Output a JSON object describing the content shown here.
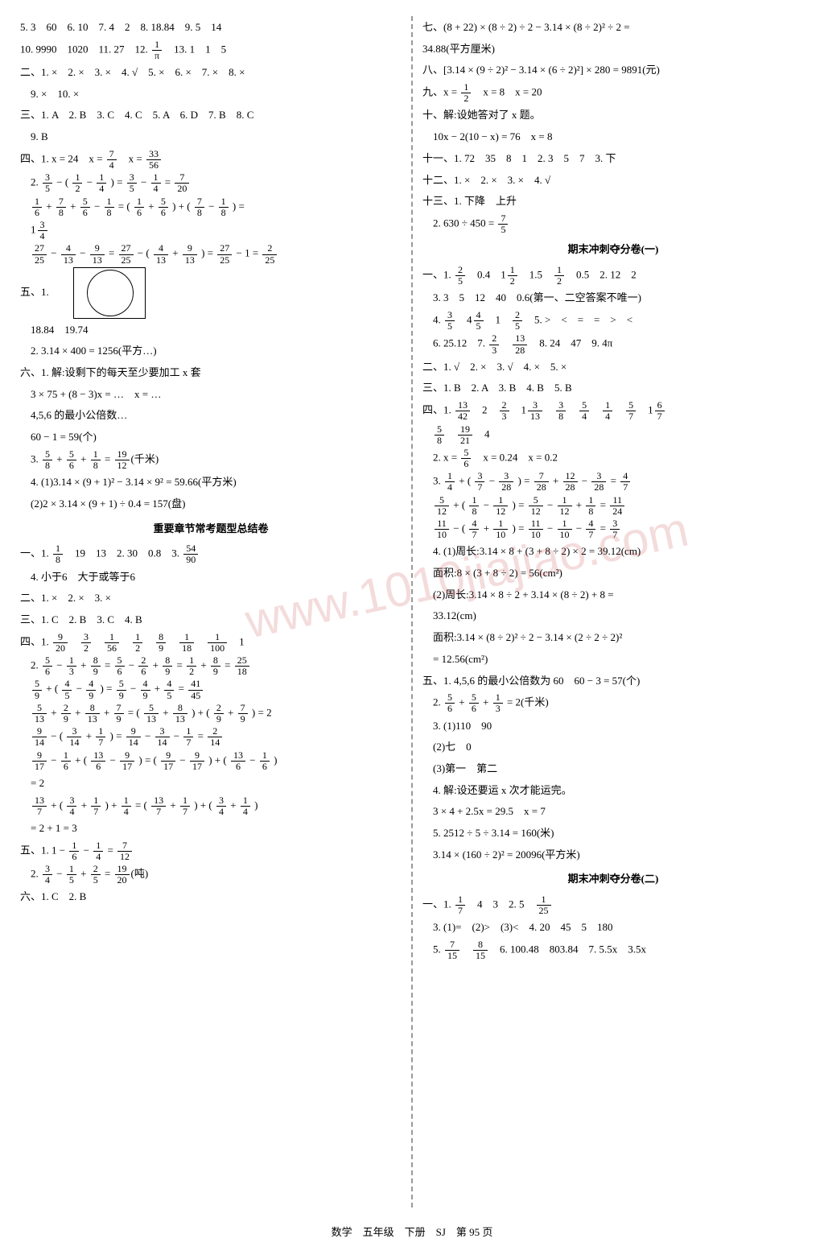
{
  "left": {
    "l1": "5. 3　60　6. 10　7. 4　2　8. 18.84　9. 5　14",
    "l2": "10. 9990　1020　11. 27　12. ",
    "l2b": "　13. 1　1　5",
    "f_1pi_n": "1",
    "f_1pi_d": "π",
    "l3": "二、1. ×　2. ×　3. ×　4. √　5. ×　6. ×　7. ×　8. ×",
    "l4": "　9. ×　10. ×",
    "l5": "三、1. A　2. B　3. C　4. C　5. A　6. D　7. B　8. C",
    "l6": "　9. B",
    "l7": "四、1. x = 24　x = ",
    "f74n": "7",
    "f74d": "4",
    "l7b": "　x = ",
    "f3356n": "33",
    "f3356d": "56",
    "l8a": "　2. ",
    "f35n": "3",
    "f35d": "5",
    "l8b": " − ( ",
    "f12n": "1",
    "f12d": "2",
    "l8c": " − ",
    "f14n": "1",
    "f14d": "4",
    "l8d": " ) = ",
    "l8e": " − ",
    "l8f": " = ",
    "f720n": "7",
    "f720d": "20",
    "l9a": "　",
    "f16n": "1",
    "f16d": "6",
    "l9b": " + ",
    "f78n": "7",
    "f78d": "8",
    "l9c": " + ",
    "f56n": "5",
    "f56d": "6",
    "l9d": " − ",
    "f18n": "1",
    "f18d": "8",
    "l9e": " = ( ",
    "l9f": " + ",
    "l9g": " ) + ( ",
    "l9h": " − ",
    "l9i": " ) =",
    "l10": "　1",
    "f34n": "3",
    "f34d": "4",
    "l11a": "　",
    "f2725n": "27",
    "f2725d": "25",
    "l11b": " − ",
    "f413n": "4",
    "f413d": "13",
    "l11c": " − ",
    "f913n": "9",
    "f913d": "13",
    "l11d": " = ",
    "l11e": " − ( ",
    "l11f": " + ",
    "l11g": " ) = ",
    "l11h": " − 1 = ",
    "f225n": "2",
    "f225d": "25",
    "l12": "五、1.",
    "l13": "　18.84　19.74",
    "l14": "　2. 3.14 × 400 = 1256(平方…)",
    "l15": "六、1. 解:设剩下的每天至少要加工 x 套",
    "l16": "　3 × 75 + (8 − 3)x = …　x = …",
    "l17": "　4,5,6 的最小公倍数…",
    "l18": "　60 − 1 = 59(个)",
    "l19a": "　3. ",
    "f58n": "5",
    "f58d": "8",
    "l19b": " + ",
    "l19c": " + ",
    "l19d": " = ",
    "f1912n": "19",
    "f1912d": "12",
    "l19e": "(千米)",
    "l20": "　4. (1)3.14 × (9 + 1)² − 3.14 × 9² = 59.66(平方米)",
    "l21": "　(2)2 × 3.14 × (9 + 1) ÷ 0.4 = 157(盘)",
    "title1": "重要章节常考题型总结卷",
    "l22a": "一、1. ",
    "l22b": "　19　13　2. 30　0.8　3. ",
    "f5490n": "54",
    "f5490d": "90",
    "l23": "　4. 小于6　大于或等于6",
    "l24": "二、1. ×　2. ×　3. ×",
    "l25": "三、1. C　2. B　3. C　4. B",
    "l26a": "四、1. ",
    "f920n": "9",
    "f920d": "20",
    "sp": "　",
    "f32n": "3",
    "f32d": "2",
    "f156n": "1",
    "f156d": "56",
    "f89n": "8",
    "f89d": "9",
    "f118n": "1",
    "f118d": "18",
    "f1100n": "1",
    "f1100d": "100",
    "l26b": "　1",
    "l27a": "　2. ",
    "l27b": " − ",
    "f13n": "1",
    "f13d": "3",
    "l27c": " + ",
    "l27d": " = ",
    "l27e": " − ",
    "f26n": "2",
    "f26d": "6",
    "l27f": " + ",
    "l27g": " = ",
    "l27h": " + ",
    "l27i": " = ",
    "f2518n": "25",
    "f2518d": "18",
    "l28a": "　",
    "f59n": "5",
    "f59d": "9",
    "l28b": " + ( ",
    "f45n": "4",
    "f45d": "5",
    "l28c": " − ",
    "f49n": "4",
    "f49d": "9",
    "l28d": " ) = ",
    "l28e": " − ",
    "l28f": " + ",
    "l28g": " = ",
    "f4145n": "41",
    "f4145d": "45",
    "l29a": "　",
    "f513n": "5",
    "f513d": "13",
    "l29b": " + ",
    "f29n": "2",
    "f29d": "9",
    "l29c": " + ",
    "f813n": "8",
    "f813d": "13",
    "l29d": " + ",
    "f79n": "7",
    "f79d": "9",
    "l29e": " = ( ",
    "l29f": " + ",
    "l29g": " ) + ( ",
    "l29h": " + ",
    "l29i": " ) = 2",
    "l30a": "　",
    "f914n": "9",
    "f914d": "14",
    "l30b": " − ( ",
    "f314n": "3",
    "f314d": "14",
    "l30c": " + ",
    "f17n": "1",
    "f17d": "7",
    "l30d": " ) = ",
    "l30e": " − ",
    "l30f": " − ",
    "l30g": " = ",
    "f214n": "2",
    "f214d": "14",
    "l31a": "　",
    "f917n": "9",
    "f917d": "17",
    "l31b": " − ",
    "l31c": " + ( ",
    "f1317n": "13",
    "f1317d": "6",
    "l31d": " − ",
    "l31e": " ) = ( ",
    "l31f": " − ",
    "l31g": " ) + ( ",
    "l31h": " − ",
    "l31i": " )",
    "l32": "　= 2",
    "l33a": "　",
    "f137n": "13",
    "f137d": "7",
    "l33b": " + ( ",
    "l33c": " + ",
    "l33d": " ) + ",
    "l33e": " = ( ",
    "l33f": " + ",
    "l33g": " ) + ( ",
    "l33h": " + ",
    "l33i": " )",
    "l34": "　= 2 + 1 = 3",
    "l35a": "五、1. 1 − ",
    "l35b": " − ",
    "l35c": " = ",
    "f712n": "7",
    "f712d": "12",
    "l36a": "　2. ",
    "l36b": " − ",
    "f15n": "1",
    "f15d": "5",
    "l36c": " + ",
    "f25n": "2",
    "f25d": "5",
    "l36d": " = ",
    "f1920n": "19",
    "f1920d": "20",
    "l36e": "(吨)",
    "l37": "六、1. C　2. B"
  },
  "right": {
    "l1": "七、(8 + 22) × (8 ÷ 2) ÷ 2 − 3.14 × (8 ÷ 2)² ÷ 2 =",
    "l2": "34.88(平方厘米)",
    "l3": "八、[3.14 × (9 ÷ 2)² − 3.14 × (6 ÷ 2)²] × 280 = 9891(元)",
    "l4a": "九、x = ",
    "f12n": "1",
    "f12d": "2",
    "l4b": "　x = 8　x = 20",
    "l5": "十、解:设她答对了 x 题。",
    "l6": "　10x − 2(10 − x) = 76　x = 8",
    "l7": "十一、1. 72　35　8　1　2. 3　5　7　3. 下",
    "l8": "十二、1. ×　2. ×　3. ×　4. √",
    "l9": "十三、1. 下降　上升",
    "l10a": "　2. 630 ÷ 450 = ",
    "f75n": "7",
    "f75d": "5",
    "title1": "期末冲刺夺分卷(一)",
    "l11a": "一、1. ",
    "f25n": "2",
    "f25d": "5",
    "l11b": "　0.4　1",
    "l11c": "　1.5　",
    "l11d": "　0.5　2. 12　2",
    "l12": "　3. 3　5　12　40　0.6(第一、二空答案不唯一)",
    "l13a": "　4. ",
    "f35n": "3",
    "f35d": "5",
    "l13b": "　4",
    "f45n": "4",
    "f45d": "5",
    "l13c": "　1　",
    "l13d": "　5. >　<　=　=　>　<",
    "l14a": "　6. 25.12　7. ",
    "f23n": "2",
    "f23d": "3",
    "sp": "　",
    "f1328n": "13",
    "f1328d": "28",
    "l14b": "　8. 24　47　9. 4π",
    "l15": "二、1. √　2. ×　3. √　4. ×　5. ×",
    "l16": "三、1. B　2. A　3. B　4. B　5. B",
    "l17a": "四、1. ",
    "f1342n": "13",
    "f1342d": "42",
    "l17b": "　2　",
    "l17c": "　1",
    "f313n": "3",
    "f313d": "13",
    "f38n": "3",
    "f38d": "8",
    "f54n": "5",
    "f54d": "4",
    "f14n": "1",
    "f14d": "4",
    "f57n": "5",
    "f57d": "7",
    "l17d": "　1",
    "f67n": "6",
    "f67d": "7",
    "l18a": "　",
    "f58n": "5",
    "f58d": "8",
    "l18b": "　",
    "f1921n": "19",
    "f1921d": "21",
    "l18c": "　4",
    "l19a": "　2. x = ",
    "f56n": "5",
    "f56d": "6",
    "l19b": "　x = 0.24　x = 0.2",
    "l20a": "　3. ",
    "l20b": " + ( ",
    "f37n": "3",
    "f37d": "7",
    "l20c": " − ",
    "f328n": "3",
    "f328d": "28",
    "l20d": " ) = ",
    "f728n": "7",
    "f728d": "28",
    "l20e": " + ",
    "f1228n": "12",
    "f1228d": "28",
    "l20f": " − ",
    "l20g": " = ",
    "f47n": "4",
    "f47d": "7",
    "l21a": "　",
    "f512n": "5",
    "f512d": "12",
    "l21b": " + ( ",
    "f18n": "1",
    "f18d": "8",
    "l21c": " − ",
    "f112n": "1",
    "f112d": "12",
    "l21d": " ) = ",
    "l21e": " − ",
    "l21f": " + ",
    "l21g": " = ",
    "f1124n": "11",
    "f1124d": "24",
    "l22a": "　",
    "f1110n": "11",
    "f1110d": "10",
    "l22b": " − ( ",
    "l22c": " + ",
    "f110n": "1",
    "f110d": "10",
    "l22d": " ) = ",
    "l22e": " − ",
    "l22f": " − ",
    "l22g": " = ",
    "f37b": "3",
    "l23": "　4. (1)周长:3.14 × 8 + (3 + 8 ÷ 2) × 2 = 39.12(cm)",
    "l24": "　面积:8 × (3 + 8 ÷ 2) = 56(cm²)",
    "l25": "　(2)周长:3.14 × 8 ÷ 2 + 3.14 × (8 ÷ 2) + 8 =",
    "l26": "　33.12(cm)",
    "l27": "　面积:3.14 × (8 ÷ 2)² ÷ 2 − 3.14 × (2 ÷ 2 ÷ 2)²",
    "l28": "　= 12.56(cm²)",
    "l29": "五、1. 4,5,6 的最小公倍数为 60　60 − 3 = 57(个)",
    "l30a": "　2. ",
    "l30b": " + ",
    "l30c": " + ",
    "f13n": "1",
    "f13d": "3",
    "l30d": " = 2(千米)",
    "l31": "　3. (1)110　90",
    "l32": "　(2)七　0",
    "l33": "　(3)第一　第二",
    "l34": "　4. 解:设还要运 x 次才能运完。",
    "l35": "　3 × 4 + 2.5x = 29.5　x = 7",
    "l36": "　5. 2512 ÷ 5 ÷ 3.14 = 160(米)",
    "l37": "　3.14 × (160 ÷ 2)² = 20096(平方米)",
    "title2": "期末冲刺夺分卷(二)",
    "l38a": "一、1. ",
    "f17n": "1",
    "f17d": "7",
    "l38b": "　4　3　2. 5　",
    "f125n": "1",
    "f125d": "25",
    "l39": "　3. (1)=　(2)>　(3)<　4. 20　45　5　180",
    "l40a": "　5. ",
    "f715n": "7",
    "f715d": "15",
    "f815n": "8",
    "f815d": "15",
    "l40b": "　6. 100.48　803.84　7. 5.5x　3.5x"
  },
  "footer": "数学　五年级　下册　SJ　第 95 页",
  "watermark": "www.1010jiajiao.com"
}
